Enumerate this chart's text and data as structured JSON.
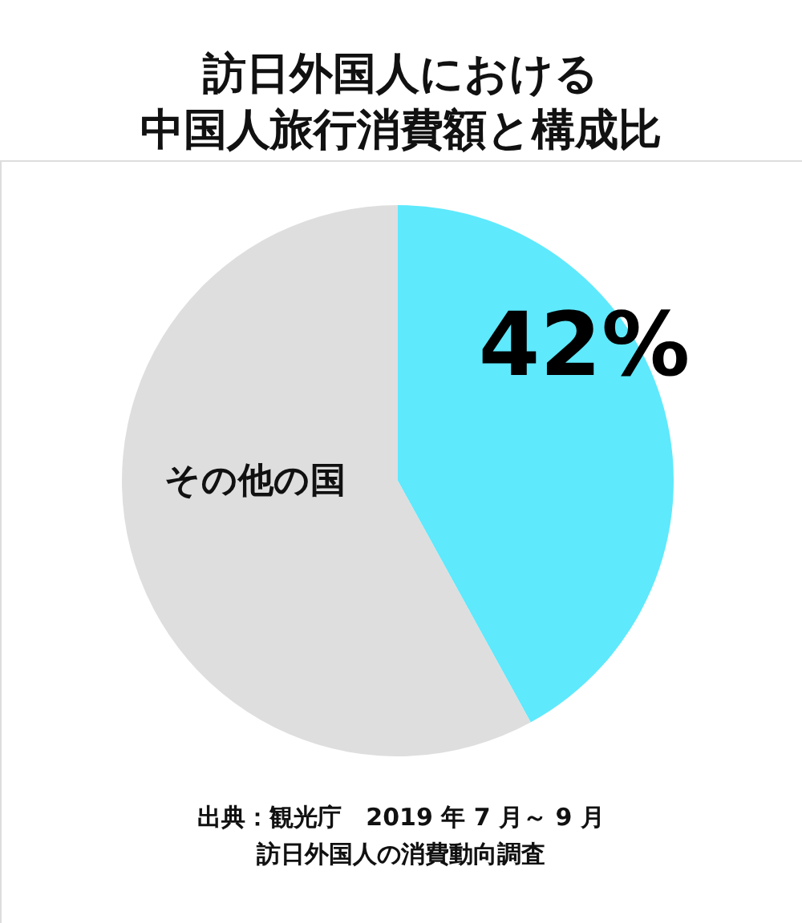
{
  "chart_data": {
    "type": "pie",
    "title": "訪日外国人における中国人旅行消費額と構成比",
    "categories": [
      null,
      "その他の国"
    ],
    "values": [
      42,
      58
    ],
    "colors": [
      "#5ee9fd",
      "#dedede"
    ],
    "value_labels": [
      "42%",
      null
    ],
    "annotations": [
      "出典：観光庁　2019 年 7 月～ 9 月",
      "訪日外国人の消費動向調査"
    ]
  }
}
